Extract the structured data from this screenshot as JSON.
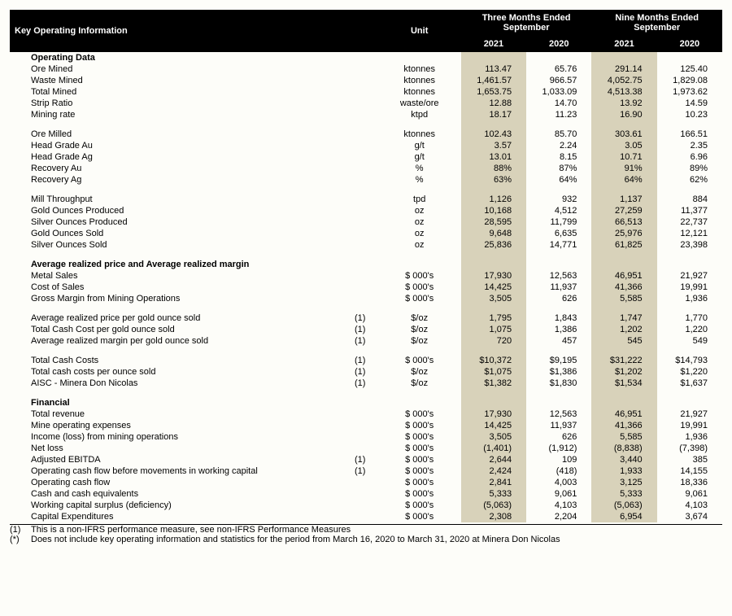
{
  "colors": {
    "header_bg": "#000000",
    "header_fg": "#ffffff",
    "shade_bg": "#d8d2ba",
    "page_bg": "#fdfdf9",
    "text": "#000000"
  },
  "typography": {
    "font_family": "Arial",
    "base_size_pt": 8
  },
  "headers": {
    "title": "Key Operating Information",
    "unit": "Unit",
    "group_three": "Three Months Ended September",
    "group_nine": "Nine Months Ended September",
    "y2021": "2021",
    "y2020": "2020"
  },
  "sections": {
    "op": "Operating Data",
    "avg": "Average realized price and Average realized margin",
    "fin": "Financial"
  },
  "rows": {
    "ore_mined": {
      "label": "Ore Mined",
      "unit": "ktonnes",
      "v": [
        "113.47",
        "65.76",
        "291.14",
        "125.40"
      ]
    },
    "waste_mined": {
      "label": "Waste Mined",
      "unit": "ktonnes",
      "v": [
        "1,461.57",
        "966.57",
        "4,052.75",
        "1,829.08"
      ]
    },
    "total_mined": {
      "label": "Total Mined",
      "unit": "ktonnes",
      "v": [
        "1,653.75",
        "1,033.09",
        "4,513.38",
        "1,973.62"
      ]
    },
    "strip_ratio": {
      "label": "Strip Ratio",
      "unit": "waste/ore",
      "v": [
        "12.88",
        "14.70",
        "13.92",
        "14.59"
      ]
    },
    "mining_rate": {
      "label": "Mining rate",
      "unit": "ktpd",
      "v": [
        "18.17",
        "11.23",
        "16.90",
        "10.23"
      ]
    },
    "ore_milled": {
      "label": "Ore Milled",
      "unit": "ktonnes",
      "v": [
        "102.43",
        "85.70",
        "303.61",
        "166.51"
      ]
    },
    "head_au": {
      "label": "Head Grade Au",
      "unit": "g/t",
      "v": [
        "3.57",
        "2.24",
        "3.05",
        "2.35"
      ]
    },
    "head_ag": {
      "label": "Head Grade Ag",
      "unit": "g/t",
      "v": [
        "13.01",
        "8.15",
        "10.71",
        "6.96"
      ]
    },
    "rec_au": {
      "label": "Recovery Au",
      "unit": "%",
      "v": [
        "88%",
        "87%",
        "91%",
        "89%"
      ]
    },
    "rec_ag": {
      "label": "Recovery Ag",
      "unit": "%",
      "v": [
        "63%",
        "64%",
        "64%",
        "62%"
      ]
    },
    "mill_tp": {
      "label": "Mill Throughput",
      "unit": "tpd",
      "v": [
        "1,126",
        "932",
        "1,137",
        "884"
      ]
    },
    "gold_prod": {
      "label": "Gold Ounces Produced",
      "unit": "oz",
      "v": [
        "10,168",
        "4,512",
        "27,259",
        "11,377"
      ]
    },
    "silver_prod": {
      "label": "Silver Ounces Produced",
      "unit": "oz",
      "v": [
        "28,595",
        "11,799",
        "66,513",
        "22,737"
      ]
    },
    "gold_sold": {
      "label": "Gold Ounces Sold",
      "unit": "oz",
      "v": [
        "9,648",
        "6,635",
        "25,976",
        "12,121"
      ]
    },
    "silver_sold": {
      "label": "Silver Ounces Sold",
      "unit": "oz",
      "v": [
        "25,836",
        "14,771",
        "61,825",
        "23,398"
      ]
    },
    "metal_sales": {
      "label": "Metal Sales",
      "unit": "$ 000's",
      "v": [
        "17,930",
        "12,563",
        "46,951",
        "21,927"
      ]
    },
    "cost_sales": {
      "label": "Cost of Sales",
      "unit": "$ 000's",
      "v": [
        "14,425",
        "11,937",
        "41,366",
        "19,991"
      ]
    },
    "gross_margin": {
      "label": "Gross Margin from Mining Operations",
      "unit": "$ 000's",
      "v": [
        "3,505",
        "626",
        "5,585",
        "1,936"
      ]
    },
    "arp_gold": {
      "label": "Average realized price per gold ounce sold",
      "note": "(1)",
      "unit": "$/oz",
      "v": [
        "1,795",
        "1,843",
        "1,747",
        "1,770"
      ]
    },
    "tcc_gold": {
      "label": "Total Cash Cost per gold ounce sold",
      "note": "(1)",
      "unit": "$/oz",
      "v": [
        "1,075",
        "1,386",
        "1,202",
        "1,220"
      ]
    },
    "arm_gold": {
      "label": "Average realized margin per gold ounce sold",
      "note": "(1)",
      "unit": "$/oz",
      "v": [
        "720",
        "457",
        "545",
        "549"
      ]
    },
    "tcc": {
      "label": "Total Cash Costs",
      "note": "(1)",
      "unit": "$ 000's",
      "v": [
        "$10,372",
        "$9,195",
        "$31,222",
        "$14,793"
      ]
    },
    "tcc_oz": {
      "label": "Total cash costs per ounce sold",
      "note": "(1)",
      "unit": "$/oz",
      "v": [
        "$1,075",
        "$1,386",
        "$1,202",
        "$1,220"
      ]
    },
    "aisc": {
      "label": "AISC - Minera Don Nicolas",
      "note": "(1)",
      "unit": "$/oz",
      "v": [
        "$1,382",
        "$1,830",
        "$1,534",
        "$1,637"
      ]
    },
    "tot_rev": {
      "label": "Total revenue",
      "unit": "$ 000's",
      "v": [
        "17,930",
        "12,563",
        "46,951",
        "21,927"
      ]
    },
    "mine_opex": {
      "label": "Mine operating expenses",
      "unit": "$ 000's",
      "v": [
        "14,425",
        "11,937",
        "41,366",
        "19,991"
      ]
    },
    "inc_loss": {
      "label": "Income (loss) from mining operations",
      "unit": "$ 000's",
      "v": [
        "3,505",
        "626",
        "5,585",
        "1,936"
      ]
    },
    "net_loss": {
      "label": "Net loss",
      "unit": "$ 000's",
      "v": [
        "(1,401)",
        "(1,912)",
        "(8,838)",
        "(7,398)"
      ]
    },
    "adj_ebitda": {
      "label": "Adjusted EBITDA",
      "note": "(1)",
      "unit": "$ 000's",
      "v": [
        "2,644",
        "109",
        "3,440",
        "385"
      ]
    },
    "ocf_before": {
      "label": "Operating cash flow before movements in working capital",
      "note": "(1)",
      "unit": "$ 000's",
      "v": [
        "2,424",
        "(418)",
        "1,933",
        "14,155"
      ]
    },
    "ocf": {
      "label": "Operating cash flow",
      "unit": "$ 000's",
      "v": [
        "2,841",
        "4,003",
        "3,125",
        "18,336"
      ]
    },
    "cash": {
      "label": "Cash and cash equivalents",
      "unit": "$ 000's",
      "v": [
        "5,333",
        "9,061",
        "5,333",
        "9,061"
      ]
    },
    "wc": {
      "label": "Working capital surplus (deficiency)",
      "unit": "$ 000's",
      "v": [
        "(5,063)",
        "4,103",
        "(5,063)",
        "4,103"
      ]
    },
    "capex": {
      "label": "Capital Expenditures",
      "unit": "$ 000's",
      "v": [
        "2,308",
        "2,204",
        "6,954",
        "3,674"
      ]
    }
  },
  "footnotes": {
    "f1": {
      "mark": "(1)",
      "text": "This is a non-IFRS performance measure, see non-IFRS Performance Measures"
    },
    "f2": {
      "mark": "(*)",
      "text": "Does not include key operating information and statistics for the period from March 16, 2020 to March 31, 2020 at Minera Don Nicolas"
    }
  }
}
